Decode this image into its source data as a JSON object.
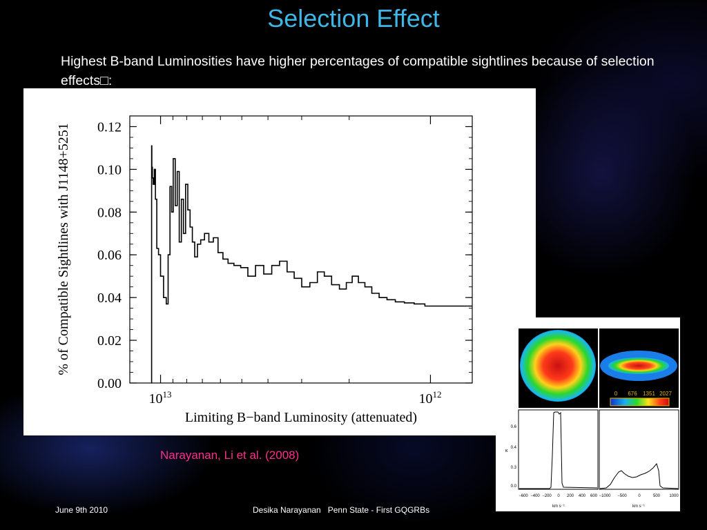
{
  "slide": {
    "title": "Selection Effect",
    "subtitle": "Highest B-band Luminosities have higher percentages of compatible sightlines because of selection effects□:",
    "citation": "Narayanan, Li et al. (2008)",
    "footer_date": "June 9th 2010",
    "footer_center": "Desika Narayanan   Penn State - First GQGRBs"
  },
  "colors": {
    "title": "#3fb7e6",
    "citation": "#ff2e8a",
    "background": "#000000"
  },
  "chart_data": [
    {
      "type": "line",
      "xlabel": "Limiting B−band Luminosity (attenuated)",
      "ylabel": "% of Compatible Sightlines with J1148+5251",
      "x_scale": "log, reversed",
      "xlim": [
        13000000000000.0,
        700000000000.0
      ],
      "ylim": [
        0,
        0.125
      ],
      "yticks": [
        "0.00",
        "0.02",
        "0.04",
        "0.06",
        "0.08",
        "0.10",
        "0.12"
      ],
      "ytick_values": [
        0,
        0.02,
        0.04,
        0.06,
        0.08,
        0.1,
        0.12
      ],
      "xticks": [
        {
          "base": "10",
          "exp": "13",
          "value": 10000000000000.0
        },
        {
          "base": "10",
          "exp": "12",
          "value": 1000000000000.0
        }
      ],
      "grid": false,
      "series": [
        {
          "x": [
            10800000000000.0,
            10790000000000.0,
            10750000000000.0,
            10700000000000.0,
            10600000000000.0,
            10500000000000.0,
            10400000000000.0,
            10250000000000.0,
            10100000000000.0,
            9900000000000.0,
            9600000000000.0,
            9450000000000.0,
            9300000000000.0,
            9150000000000.0,
            9050000000000.0,
            8900000000000.0,
            8750000000000.0,
            8600000000000.0,
            8450000000000.0,
            8300000000000.0,
            8150000000000.0,
            8000000000000.0,
            7850000000000.0,
            7700000000000.0,
            7550000000000.0,
            7400000000000.0,
            7200000000000.0,
            7000000000000.0,
            6750000000000.0,
            6500000000000.0,
            6250000000000.0,
            6000000000000.0,
            5750000000000.0,
            5500000000000.0,
            5200000000000.0,
            4900000000000.0,
            4600000000000.0,
            4300000000000.0,
            4000000000000.0,
            3750000000000.0,
            3500000000000.0,
            3300000000000.0,
            3100000000000.0,
            2900000000000.0,
            2700000000000.0,
            2550000000000.0,
            2400000000000.0,
            2250000000000.0,
            2100000000000.0,
            2000000000000.0,
            1900000000000.0,
            1800000000000.0,
            1700000000000.0,
            1600000000000.0,
            1500000000000.0,
            1400000000000.0,
            1300000000000.0,
            1200000000000.0,
            1100000000000.0,
            1000000000000.0,
            900000000000.0,
            800000000000.0,
            700000000000.0
          ],
          "y": [
            0.0,
            0.111,
            0.101,
            0.096,
            0.093,
            0.1,
            0.086,
            0.063,
            0.06,
            0.05,
            0.04,
            0.037,
            0.06,
            0.092,
            0.08,
            0.105,
            0.083,
            0.099,
            0.066,
            0.086,
            0.07,
            0.093,
            0.081,
            0.073,
            0.066,
            0.059,
            0.065,
            0.067,
            0.07,
            0.066,
            0.068,
            0.061,
            0.058,
            0.056,
            0.055,
            0.054,
            0.05,
            0.055,
            0.051,
            0.055,
            0.057,
            0.052,
            0.049,
            0.045,
            0.047,
            0.052,
            0.05,
            0.046,
            0.044,
            0.047,
            0.05,
            0.047,
            0.045,
            0.042,
            0.04,
            0.039,
            0.038,
            0.0375,
            0.037,
            0.036,
            0.036,
            0.036,
            0.036
          ]
        }
      ]
    },
    {
      "type": "heatmap",
      "colorbar_ticks": [
        "0",
        "676",
        "1351",
        "2027"
      ]
    },
    {
      "type": "line",
      "ylabel": "κ",
      "xlabel": "km s⁻¹",
      "yticks": [
        "0.0",
        "0.3",
        "0.4",
        "0.6"
      ],
      "xticks": [
        "−600",
        "−400",
        "−200",
        "0",
        "200",
        "400",
        "600"
      ]
    },
    {
      "type": "line",
      "xlabel": "km s⁻¹",
      "xticks": [
        "−1000",
        "−500",
        "0",
        "500",
        "1000"
      ]
    }
  ]
}
